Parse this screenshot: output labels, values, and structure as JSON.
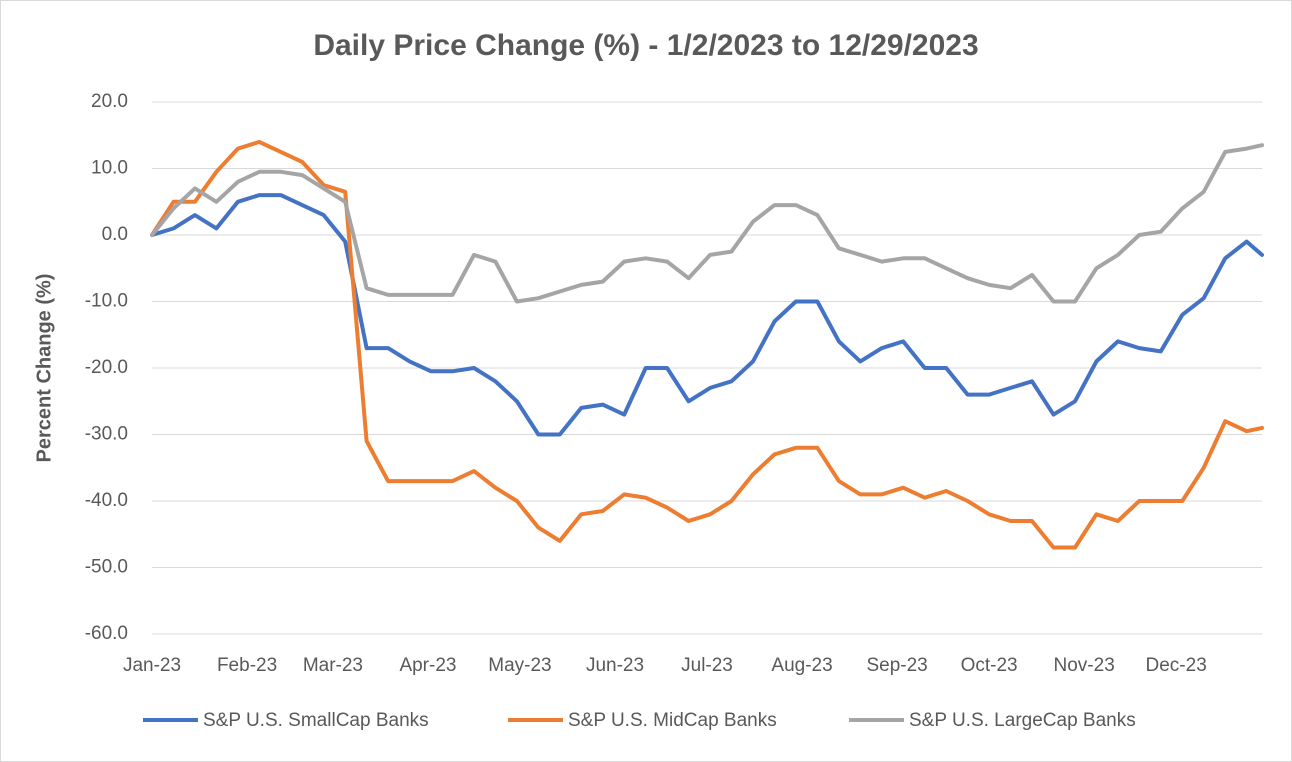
{
  "chart_data": {
    "type": "line",
    "title": "Daily Price Change (%) - 1/2/2023 to 12/29/2023",
    "y_label": "Percent Change (%)",
    "x": [
      0,
      7,
      14,
      21,
      28,
      35,
      42,
      49,
      56,
      63,
      70,
      77,
      84,
      91,
      98,
      105,
      112,
      119,
      126,
      133,
      140,
      147,
      154,
      161,
      168,
      175,
      182,
      189,
      196,
      203,
      210,
      217,
      224,
      231,
      238,
      245,
      252,
      259,
      266,
      273,
      280,
      287,
      294,
      301,
      308,
      315,
      322,
      329,
      336,
      343,
      350,
      357,
      362
    ],
    "xlim": [
      0,
      362
    ],
    "xticks": [
      {
        "value": 0,
        "label": "Jan-23"
      },
      {
        "value": 31,
        "label": "Feb-23"
      },
      {
        "value": 59,
        "label": "Mar-23"
      },
      {
        "value": 90,
        "label": "Apr-23"
      },
      {
        "value": 120,
        "label": "May-23"
      },
      {
        "value": 151,
        "label": "Jun-23"
      },
      {
        "value": 181,
        "label": "Jul-23"
      },
      {
        "value": 212,
        "label": "Aug-23"
      },
      {
        "value": 243,
        "label": "Sep-23"
      },
      {
        "value": 273,
        "label": "Oct-23"
      },
      {
        "value": 304,
        "label": "Nov-23"
      },
      {
        "value": 334,
        "label": "Dec-23"
      }
    ],
    "ylim": [
      -60,
      20
    ],
    "yticks": [
      {
        "value": -60,
        "label": "-60.0"
      },
      {
        "value": -50,
        "label": "-50.0"
      },
      {
        "value": -40,
        "label": "-40.0"
      },
      {
        "value": -30,
        "label": "-30.0"
      },
      {
        "value": -20,
        "label": "-20.0"
      },
      {
        "value": -10,
        "label": "-10.0"
      },
      {
        "value": 0,
        "label": "0.0"
      },
      {
        "value": 10,
        "label": "10.0"
      },
      {
        "value": 20,
        "label": "20.0"
      }
    ],
    "grid": true,
    "legend": "bottom",
    "series": [
      {
        "name": "S&P U.S. SmallCap Banks",
        "color": "#4472C4",
        "values": [
          0,
          1,
          3,
          1,
          5,
          6,
          6,
          4.5,
          3,
          -1,
          -17,
          -17,
          -19,
          -20.5,
          -20.5,
          -20,
          -22,
          -25,
          -30,
          -30,
          -26,
          -25.5,
          -27,
          -20,
          -20,
          -25,
          -23,
          -22,
          -19,
          -13,
          -10,
          -10,
          -16,
          -19,
          -17,
          -16,
          -20,
          -20,
          -24,
          -24,
          -23,
          -22,
          -27,
          -25,
          -19,
          -16,
          -17,
          -17.5,
          -12,
          -9.5,
          -3.5,
          -1,
          -3
        ]
      },
      {
        "name": "S&P U.S. MidCap Banks",
        "color": "#ED7D31",
        "values": [
          0,
          5,
          5,
          9.5,
          13,
          14,
          12.5,
          11,
          7.5,
          6.5,
          -31,
          -37,
          -37,
          -37,
          -37,
          -35.5,
          -38,
          -40,
          -44,
          -46,
          -42,
          -41.5,
          -39,
          -39.5,
          -41,
          -43,
          -42,
          -40,
          -36,
          -33,
          -32,
          -32,
          -37,
          -39,
          -39,
          -38,
          -39.5,
          -38.5,
          -40,
          -42,
          -43,
          -43,
          -47,
          -47,
          -42,
          -43,
          -40,
          -40,
          -40,
          -35,
          -28,
          -29.5,
          -29
        ]
      },
      {
        "name": "S&P U.S. LargeCap Banks",
        "color": "#A5A5A5",
        "values": [
          0,
          4,
          7,
          5,
          8,
          9.5,
          9.5,
          9,
          7,
          5,
          -8,
          -9,
          -9,
          -9,
          -9,
          -3,
          -4,
          -10,
          -9.5,
          -8.5,
          -7.5,
          -7,
          -4,
          -3.5,
          -4,
          -6.5,
          -3,
          -2.5,
          2,
          4.5,
          4.5,
          3,
          -2,
          -3,
          -4,
          -3.5,
          -3.5,
          -5,
          -6.5,
          -7.5,
          -8,
          -6,
          -10,
          -10,
          -5,
          -3,
          0,
          0.5,
          4,
          6.5,
          12.5,
          13,
          13.5
        ]
      }
    ]
  }
}
